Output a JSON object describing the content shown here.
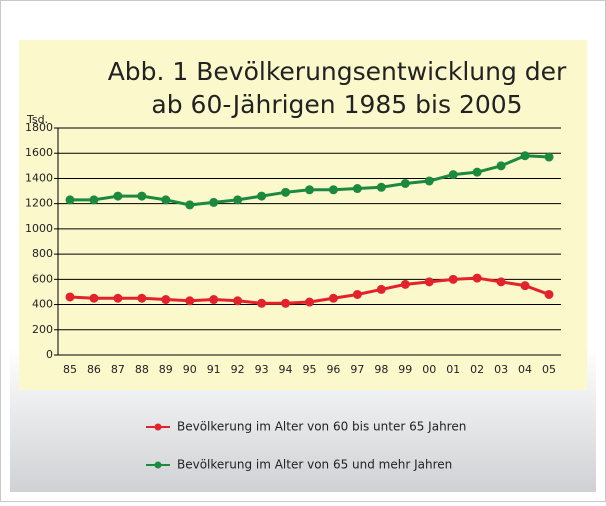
{
  "chart_data": {
    "type": "line",
    "title": [
      "Abb. 1 Bevölkerungsentwicklung der",
      "ab 60-Jährigen 1985 bis 2005"
    ],
    "y_label": "Tsd.",
    "categories": [
      "85",
      "86",
      "87",
      "88",
      "89",
      "90",
      "91",
      "92",
      "93",
      "94",
      "95",
      "96",
      "97",
      "98",
      "99",
      "00",
      "01",
      "02",
      "03",
      "04",
      "05"
    ],
    "series": [
      {
        "name": "Bevölkerung im Alter von 60 bis unter 65 Jahren",
        "color": "#e3232c",
        "values": [
          460,
          450,
          450,
          450,
          440,
          430,
          440,
          430,
          410,
          410,
          420,
          450,
          480,
          520,
          560,
          580,
          600,
          610,
          580,
          550,
          480
        ]
      },
      {
        "name": "Bevölkerung im Alter von 65 und mehr Jahren",
        "color": "#1b8a3e",
        "values": [
          1230,
          1230,
          1260,
          1260,
          1230,
          1190,
          1210,
          1230,
          1260,
          1290,
          1310,
          1310,
          1320,
          1330,
          1360,
          1380,
          1430,
          1450,
          1500,
          1580,
          1570
        ]
      }
    ],
    "ylim": [
      0,
      1800
    ],
    "yticks": [
      0,
      200,
      400,
      600,
      800,
      1000,
      1200,
      1400,
      1600,
      1800
    ],
    "grid": true
  }
}
